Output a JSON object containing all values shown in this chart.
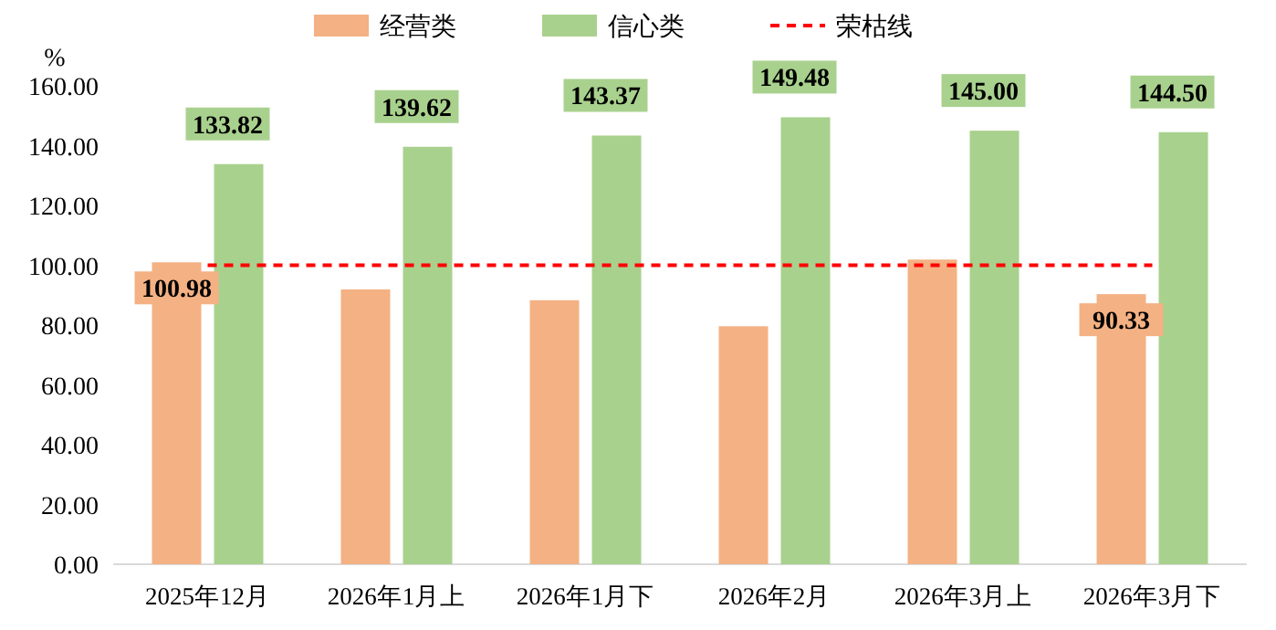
{
  "chart_data": {
    "type": "bar",
    "ylabel": "%",
    "categories": [
      "2025年12月",
      "2026年1月上",
      "2026年1月下",
      "2026年2月",
      "2026年3月上",
      "2026年3月下"
    ],
    "series": [
      {
        "name": "经营类",
        "color": "#f4b183",
        "values": [
          100.98,
          91.9,
          88.3,
          79.6,
          101.9,
          90.33
        ],
        "value_labels": [
          "100.98",
          null,
          null,
          null,
          null,
          "90.33"
        ]
      },
      {
        "name": "信心类",
        "color": "#a9d18e",
        "values": [
          133.82,
          139.62,
          143.37,
          149.48,
          145.0,
          144.5
        ],
        "value_labels": [
          "133.82",
          "139.62",
          "143.37",
          "149.48",
          "145.00",
          "144.50"
        ]
      }
    ],
    "ref_lines": [
      {
        "axis": "y",
        "value": 100,
        "label": "荣枯线",
        "color": "#ff0000",
        "line_style": "dashed"
      }
    ],
    "ylim": [
      0,
      160
    ],
    "yticks": [
      {
        "value": 0,
        "label": "0.00"
      },
      {
        "value": 20,
        "label": "20.00"
      },
      {
        "value": 40,
        "label": "40.00"
      },
      {
        "value": 60,
        "label": "60.00"
      },
      {
        "value": 80,
        "label": "80.00"
      },
      {
        "value": 100,
        "label": "100.00"
      },
      {
        "value": 120,
        "label": "120.00"
      },
      {
        "value": 140,
        "label": "140.00"
      },
      {
        "value": 160,
        "label": "160.00"
      }
    ],
    "grid": false,
    "legend": "top"
  }
}
